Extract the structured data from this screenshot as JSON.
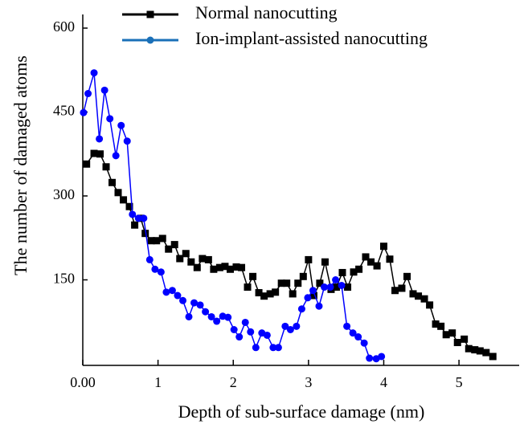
{
  "chart_data": {
    "type": "line",
    "x_label": "Depth of sub-surface damage (nm)",
    "y_label": "The number of damaged atoms",
    "xlim": [
      0,
      5.8
    ],
    "ylim": [
      0,
      600
    ],
    "xticks": [
      {
        "value": 0,
        "label": "0.00"
      },
      1,
      2,
      3,
      4,
      5
    ],
    "yticks": [
      150,
      300,
      450,
      600
    ],
    "series": [
      {
        "name": "Normal nanocutting",
        "color": "#000000",
        "marker": "square",
        "x": [
          0.05,
          0.15,
          0.23,
          0.31,
          0.39,
          0.47,
          0.54,
          0.62,
          0.69,
          0.77,
          0.83,
          0.91,
          0.98,
          1.06,
          1.14,
          1.22,
          1.29,
          1.37,
          1.44,
          1.52,
          1.59,
          1.67,
          1.74,
          1.82,
          1.89,
          1.96,
          2.04,
          2.11,
          2.19,
          2.26,
          2.34,
          2.41,
          2.49,
          2.56,
          2.64,
          2.71,
          2.79,
          2.86,
          2.93,
          3.0,
          3.07,
          3.15,
          3.22,
          3.3,
          3.37,
          3.45,
          3.52,
          3.6,
          3.67,
          3.76,
          3.83,
          3.91,
          4.0,
          4.08,
          4.15,
          4.24,
          4.31,
          4.39,
          4.46,
          4.54,
          4.61,
          4.69,
          4.76,
          4.83,
          4.91,
          4.98,
          5.07,
          5.13,
          5.21,
          5.28,
          5.36,
          5.45
        ],
        "values": [
          357,
          376,
          375,
          352,
          324,
          306,
          293,
          281,
          248,
          260,
          233,
          220,
          220,
          224,
          205,
          213,
          188,
          197,
          182,
          172,
          188,
          186,
          169,
          172,
          174,
          169,
          173,
          172,
          137,
          156,
          127,
          121,
          125,
          128,
          144,
          144,
          125,
          144,
          156,
          186,
          122,
          144,
          182,
          133,
          137,
          163,
          137,
          164,
          169,
          191,
          182,
          175,
          210,
          187,
          131,
          135,
          156,
          125,
          121,
          116,
          105,
          71,
          67,
          52,
          55,
          38,
          44,
          27,
          25,
          23,
          20,
          13
        ]
      },
      {
        "name": "Ion-implant-assisted nanocutting",
        "color": "#0000ff",
        "legend_color": "#1a70b8",
        "marker": "circle",
        "x": [
          0.01,
          0.07,
          0.15,
          0.22,
          0.29,
          0.36,
          0.44,
          0.51,
          0.59,
          0.66,
          0.74,
          0.81,
          0.89,
          0.96,
          1.04,
          1.11,
          1.19,
          1.26,
          1.33,
          1.41,
          1.48,
          1.56,
          1.63,
          1.71,
          1.78,
          1.86,
          1.93,
          2.01,
          2.08,
          2.16,
          2.23,
          2.3,
          2.38,
          2.45,
          2.53,
          2.6,
          2.69,
          2.76,
          2.84,
          2.91,
          2.99,
          3.06,
          3.14,
          3.21,
          3.29,
          3.36,
          3.44,
          3.51,
          3.59,
          3.66,
          3.74,
          3.81,
          3.9,
          3.97
        ],
        "values": [
          449,
          483,
          520,
          402,
          489,
          438,
          372,
          426,
          398,
          267,
          260,
          260,
          186,
          169,
          164,
          128,
          131,
          122,
          113,
          84,
          109,
          105,
          93,
          84,
          76,
          85,
          83,
          61,
          48,
          74,
          57,
          29,
          55,
          51,
          29,
          29,
          67,
          61,
          67,
          98,
          118,
          131,
          103,
          137,
          137,
          150,
          140,
          67,
          55,
          48,
          37,
          10,
          9,
          13
        ]
      }
    ]
  }
}
